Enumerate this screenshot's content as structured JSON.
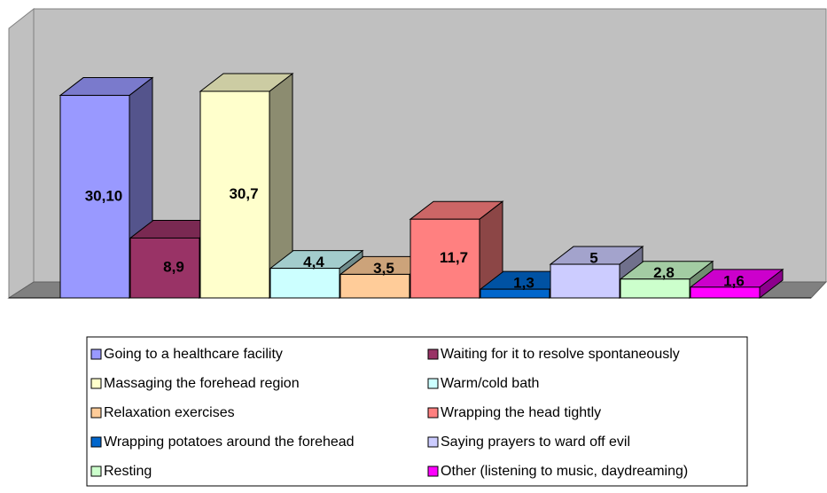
{
  "chart_data": {
    "type": "bar",
    "categories": [
      "Going to a healthcare facility",
      "Waiting for it to resolve spontaneously",
      "Massaging the forehead region",
      "Warm/cold bath",
      "Relaxation exercises",
      "Wrapping the head tightly",
      "Wrapping potatoes around the forehead",
      "Saying prayers to ward off evil",
      "Resting",
      "Other (listening to music, daydreaming)"
    ],
    "values": [
      30.1,
      8.9,
      30.7,
      4.4,
      3.5,
      11.7,
      1.3,
      5,
      2.8,
      1.6
    ],
    "value_labels": [
      "30,10",
      "8,9",
      "30,7",
      "4,4",
      "3,5",
      "11,7",
      "1,3",
      "5",
      "2,8",
      "1,6"
    ],
    "colors": [
      "#9999ff",
      "#993366",
      "#ffffcc",
      "#ccffff",
      "#ffcc99",
      "#ff8080",
      "#0066cc",
      "#ccccff",
      "#ccffcc",
      "#ff00ff"
    ]
  }
}
